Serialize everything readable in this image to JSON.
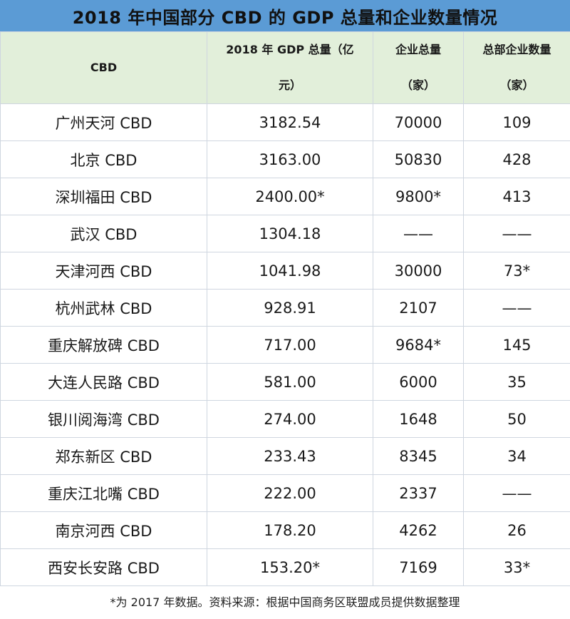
{
  "title": "2018 年中国部分 CBD 的 GDP 总量和企业数量情况",
  "headers": {
    "cbd": "CBD",
    "gdp_line1": "2018 年 GDP 总量（亿",
    "gdp_line2": "元）",
    "enterprise_line1": "企业总量",
    "enterprise_line2": "（家）",
    "hq_line1": "总部企业数量",
    "hq_line2": "（家）"
  },
  "rows": [
    {
      "name": "广州天河 CBD",
      "gdp": "3182.54",
      "enterprises": "70000",
      "hq": "109"
    },
    {
      "name": "北京 CBD",
      "gdp": "3163.00",
      "enterprises": "50830",
      "hq": "428"
    },
    {
      "name": "深圳福田 CBD",
      "gdp": "2400.00*",
      "enterprises": "9800*",
      "hq": "413"
    },
    {
      "name": "武汉 CBD",
      "gdp": "1304.18",
      "enterprises": "——",
      "hq": "——"
    },
    {
      "name": "天津河西 CBD",
      "gdp": "1041.98",
      "enterprises": "30000",
      "hq": "73*"
    },
    {
      "name": "杭州武林 CBD",
      "gdp": "928.91",
      "enterprises": "2107",
      "hq": "——"
    },
    {
      "name": "重庆解放碑 CBD",
      "gdp": "717.00",
      "enterprises": "9684*",
      "hq": "145"
    },
    {
      "name": "大连人民路 CBD",
      "gdp": "581.00",
      "enterprises": "6000",
      "hq": "35"
    },
    {
      "name": "银川阅海湾 CBD",
      "gdp": "274.00",
      "enterprises": "1648",
      "hq": "50"
    },
    {
      "name": "郑东新区 CBD",
      "gdp": "233.43",
      "enterprises": "8345",
      "hq": "34"
    },
    {
      "name": "重庆江北嘴 CBD",
      "gdp": "222.00",
      "enterprises": "2337",
      "hq": "——"
    },
    {
      "name": "南京河西 CBD",
      "gdp": "178.20",
      "enterprises": "4262",
      "hq": "26"
    },
    {
      "name": "西安长安路 CBD",
      "gdp": "153.20*",
      "enterprises": "7169",
      "hq": "33*"
    }
  ],
  "footnote": "*为 2017 年数据。资料来源：根据中国商务区联盟成员提供数据整理",
  "colors": {
    "title_bg": "#5b9bd5",
    "header_bg": "#e2efda",
    "border": "#cfd6e0"
  }
}
